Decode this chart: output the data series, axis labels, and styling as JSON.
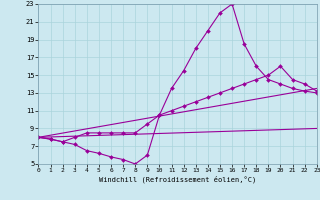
{
  "xlabel": "Windchill (Refroidissement éolien,°C)",
  "bg_color": "#cce8f0",
  "line_color": "#990099",
  "grid_color": "#aad4dc",
  "xmin": 0,
  "xmax": 23,
  "ymin": 5,
  "ymax": 23,
  "yticks": [
    5,
    7,
    9,
    11,
    13,
    15,
    17,
    19,
    21,
    23
  ],
  "xticks": [
    0,
    1,
    2,
    3,
    4,
    5,
    6,
    7,
    8,
    9,
    10,
    11,
    12,
    13,
    14,
    15,
    16,
    17,
    18,
    19,
    20,
    21,
    22,
    23
  ],
  "series": [
    {
      "x": [
        0,
        1,
        2,
        3,
        4,
        5,
        6,
        7,
        8,
        9,
        10,
        11,
        12,
        13,
        14,
        15,
        16,
        17,
        18,
        19,
        20,
        21,
        22,
        23
      ],
      "y": [
        8,
        7.8,
        7.5,
        7.2,
        6.5,
        6.2,
        5.8,
        5.5,
        5.0,
        6.0,
        10.5,
        13.5,
        15.5,
        18.0,
        20.0,
        22.0,
        23.0,
        18.5,
        16.0,
        14.5,
        14.0,
        13.5,
        13.2,
        13.0
      ],
      "markers": true
    },
    {
      "x": [
        0,
        1,
        2,
        3,
        4,
        5,
        6,
        7,
        8,
        9,
        10,
        11,
        12,
        13,
        14,
        15,
        16,
        17,
        18,
        19,
        20,
        21,
        22,
        23
      ],
      "y": [
        8,
        7.8,
        7.5,
        8.0,
        8.5,
        8.5,
        8.5,
        8.5,
        8.5,
        9.5,
        10.5,
        11.0,
        11.5,
        12.0,
        12.5,
        13.0,
        13.5,
        14.0,
        14.5,
        15.0,
        16.0,
        14.5,
        14.0,
        13.2
      ],
      "markers": true
    },
    {
      "x": [
        0,
        23
      ],
      "y": [
        8.0,
        13.5
      ],
      "markers": false
    },
    {
      "x": [
        0,
        23
      ],
      "y": [
        8.0,
        9.0
      ],
      "markers": false
    }
  ]
}
